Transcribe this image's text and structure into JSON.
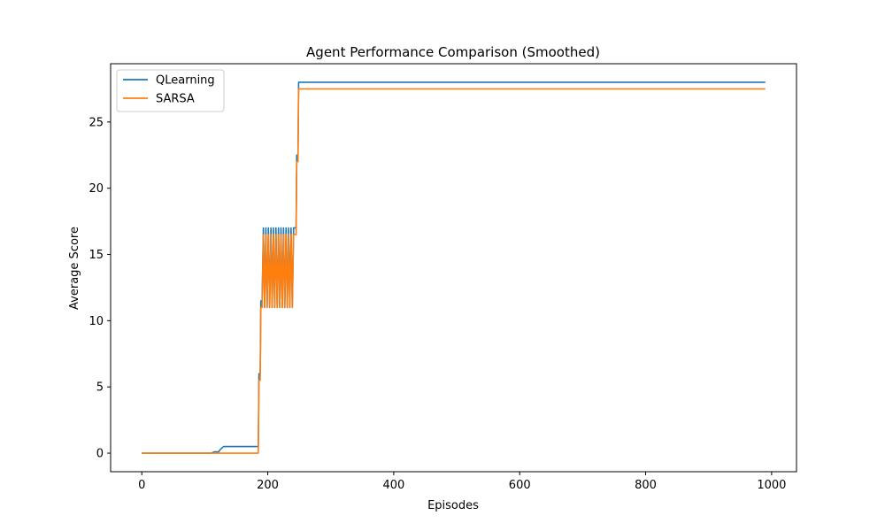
{
  "chart_data": {
    "type": "line",
    "title": "Agent Performance Comparison (Smoothed)",
    "xlabel": "Episodes",
    "ylabel": "Average Score",
    "xlim": [
      -49.5,
      1039.5
    ],
    "ylim": [
      -1.4,
      29.4
    ],
    "xticks": [
      0,
      200,
      400,
      600,
      800,
      1000
    ],
    "yticks": [
      0,
      5,
      10,
      15,
      20,
      25
    ],
    "legend": "top-left",
    "grid": false,
    "series": [
      {
        "name": "QLearning",
        "color": "#1f77b4",
        "points": [
          [
            0,
            0
          ],
          [
            110,
            0
          ],
          [
            115,
            0.1
          ],
          [
            122,
            0.1
          ],
          [
            125,
            0.3
          ],
          [
            130,
            0.5
          ],
          [
            185,
            0.5
          ],
          [
            186,
            6.0
          ],
          [
            188,
            6.0
          ],
          [
            189,
            11.5
          ],
          [
            191,
            11.5
          ],
          [
            193,
            17.0
          ],
          [
            195,
            11.0
          ],
          [
            197,
            17.0
          ],
          [
            199,
            11.0
          ],
          [
            201,
            17.0
          ],
          [
            203,
            11.0
          ],
          [
            205,
            17.0
          ],
          [
            207,
            11.0
          ],
          [
            209,
            17.0
          ],
          [
            211,
            11.0
          ],
          [
            213,
            17.0
          ],
          [
            215,
            11.0
          ],
          [
            217,
            17.0
          ],
          [
            219,
            11.0
          ],
          [
            221,
            17.0
          ],
          [
            223,
            11.0
          ],
          [
            225,
            17.0
          ],
          [
            227,
            11.0
          ],
          [
            229,
            17.0
          ],
          [
            231,
            11.0
          ],
          [
            233,
            17.0
          ],
          [
            235,
            11.0
          ],
          [
            237,
            17.0
          ],
          [
            239,
            11.0
          ],
          [
            241,
            17.0
          ],
          [
            245,
            17.0
          ],
          [
            246,
            22.5
          ],
          [
            248,
            22.5
          ],
          [
            249,
            28.0
          ],
          [
            990,
            28.0
          ]
        ]
      },
      {
        "name": "SARSA",
        "color": "#ff7f0e",
        "points": [
          [
            0,
            0
          ],
          [
            185,
            0
          ],
          [
            186,
            5.5
          ],
          [
            188,
            5.5
          ],
          [
            189,
            11.0
          ],
          [
            191,
            11.0
          ],
          [
            193,
            16.5
          ],
          [
            195,
            11.0
          ],
          [
            197,
            16.5
          ],
          [
            199,
            11.0
          ],
          [
            201,
            16.5
          ],
          [
            203,
            11.0
          ],
          [
            205,
            16.5
          ],
          [
            207,
            11.0
          ],
          [
            209,
            16.5
          ],
          [
            211,
            11.0
          ],
          [
            213,
            16.5
          ],
          [
            215,
            11.0
          ],
          [
            217,
            16.5
          ],
          [
            219,
            11.0
          ],
          [
            221,
            16.5
          ],
          [
            223,
            11.0
          ],
          [
            225,
            16.5
          ],
          [
            227,
            11.0
          ],
          [
            229,
            16.5
          ],
          [
            231,
            11.0
          ],
          [
            233,
            16.5
          ],
          [
            235,
            11.0
          ],
          [
            237,
            16.5
          ],
          [
            239,
            11.0
          ],
          [
            241,
            16.5
          ],
          [
            245,
            16.5
          ],
          [
            246,
            22.0
          ],
          [
            248,
            22.0
          ],
          [
            249,
            27.5
          ],
          [
            990,
            27.5
          ]
        ]
      }
    ]
  }
}
